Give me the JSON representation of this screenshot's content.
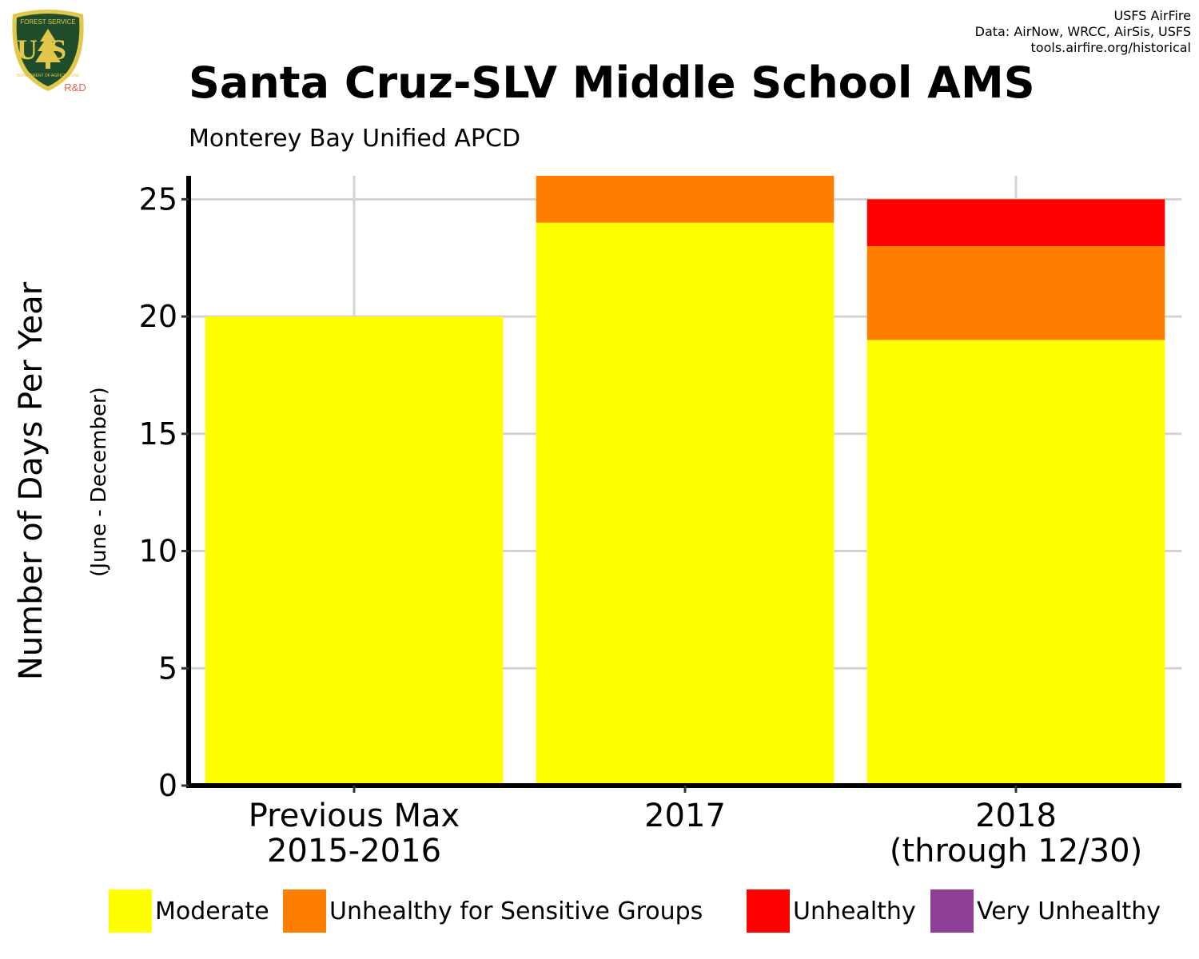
{
  "logo": {
    "icon": "usfs-shield-logo",
    "text_top": "FOREST SERVICE",
    "text_letters": "US",
    "text_bottom": "DEPARTMENT OF AGRICULTURE",
    "badge": "R&D",
    "colors": {
      "shield": "#1f4d2b",
      "gold": "#e2c84a",
      "badge": "#e8604c"
    }
  },
  "credits": {
    "line1": "USFS AirFire",
    "line2": "Data: AirNow, WRCC, AirSis, USFS",
    "line3": "tools.airfire.org/historical"
  },
  "header": {
    "title": "Santa Cruz-SLV Middle School AMS",
    "subtitle": "Monterey Bay Unified APCD"
  },
  "chart_data": {
    "type": "bar",
    "stacked": true,
    "title": "Santa Cruz-SLV Middle School AMS",
    "subtitle": "Monterey Bay Unified APCD",
    "ylabel": "Number of Days Per Year",
    "ylabel_sub": "(June - December)",
    "xlabel": "",
    "ylim": [
      0,
      26
    ],
    "yticks": [
      0,
      5,
      10,
      15,
      20,
      25
    ],
    "grid": true,
    "legend_position": "bottom",
    "categories": [
      [
        "Previous Max",
        "2015-2016"
      ],
      [
        "2017"
      ],
      [
        "2018",
        "(through 12/30)"
      ]
    ],
    "series": [
      {
        "name": "Moderate",
        "color": "#ffff00",
        "values": [
          20,
          24,
          19
        ]
      },
      {
        "name": "Unhealthy for Sensitive Groups",
        "color": "#ff7e00",
        "values": [
          0,
          2,
          4
        ]
      },
      {
        "name": "Unhealthy",
        "color": "#ff0000",
        "values": [
          0,
          0,
          2
        ]
      },
      {
        "name": "Very Unhealthy",
        "color": "#8f3f97",
        "values": [
          0,
          0,
          0
        ]
      }
    ]
  }
}
